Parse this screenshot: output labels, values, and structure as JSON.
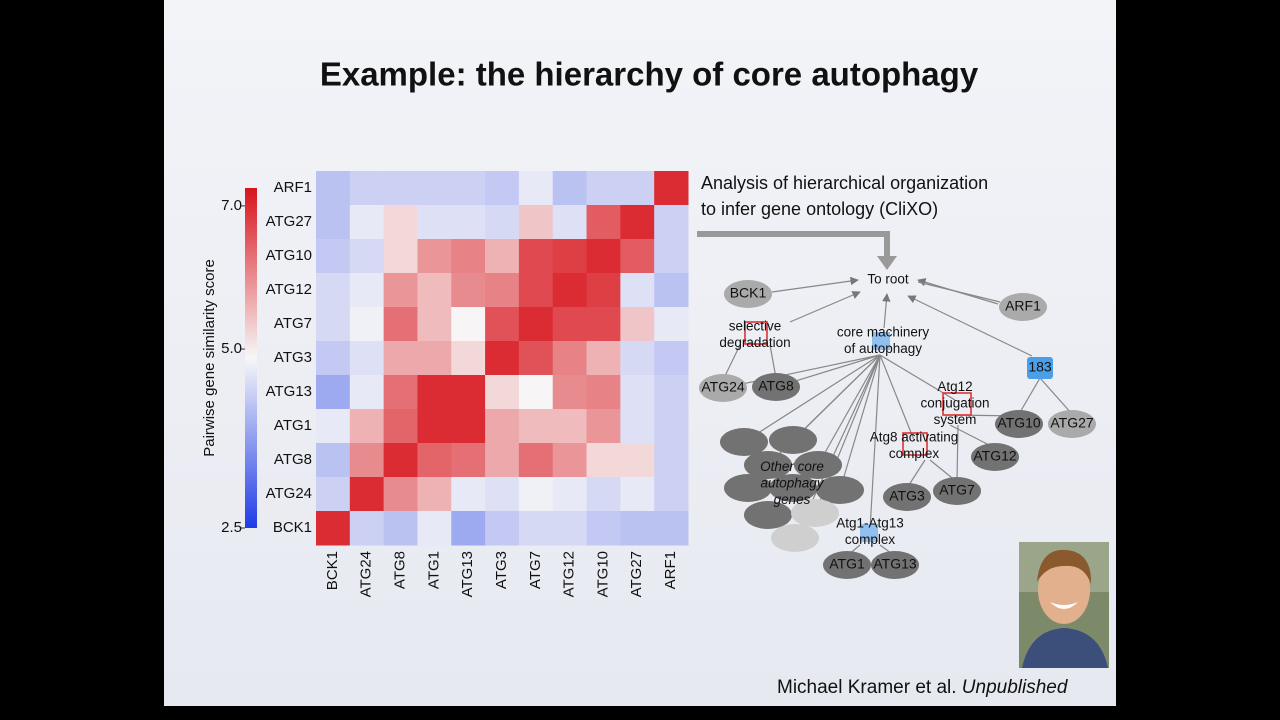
{
  "title": "Example: the hierarchy of core autophagy",
  "chart_data": {
    "type": "heatmap",
    "colorbar_label": "Pairwise gene similarity score",
    "x_categories": [
      "BCK1",
      "ATG24",
      "ATG8",
      "ATG1",
      "ATG13",
      "ATG3",
      "ATG7",
      "ATG12",
      "ATG10",
      "ATG27",
      "ARF1"
    ],
    "y_categories": [
      "ARF1",
      "ATG27",
      "ATG10",
      "ATG12",
      "ATG7",
      "ATG3",
      "ATG13",
      "ATG1",
      "ATG8",
      "ATG24",
      "BCK1"
    ],
    "values": [
      [
        4.2,
        4.4,
        4.4,
        4.4,
        4.4,
        4.3,
        4.7,
        4.2,
        4.4,
        4.4,
        7
      ],
      [
        4.2,
        4.7,
        5.2,
        4.6,
        4.6,
        4.5,
        5.4,
        4.6,
        6.5,
        7,
        4.4
      ],
      [
        4.3,
        4.5,
        5.2,
        5.9,
        6.1,
        5.6,
        6.7,
        6.8,
        7,
        6.5,
        4.4
      ],
      [
        4.5,
        4.7,
        5.9,
        5.5,
        6.0,
        6.1,
        6.7,
        7,
        6.8,
        4.6,
        4.2
      ],
      [
        4.5,
        4.8,
        6.3,
        5.5,
        4.9,
        6.6,
        7,
        6.7,
        6.7,
        5.4,
        4.7
      ],
      [
        4.3,
        4.6,
        5.7,
        5.7,
        5.2,
        7,
        6.6,
        6.1,
        5.6,
        4.5,
        4.3
      ],
      [
        3.9,
        4.7,
        6.3,
        7,
        7,
        5.2,
        4.9,
        6.0,
        6.1,
        4.6,
        4.4
      ],
      [
        4.7,
        5.6,
        6.4,
        7,
        7,
        5.7,
        5.5,
        5.5,
        5.9,
        4.6,
        4.4
      ],
      [
        4.2,
        6.0,
        7,
        6.4,
        6.3,
        5.7,
        6.3,
        5.9,
        5.2,
        5.2,
        4.4
      ],
      [
        4.4,
        7,
        6.0,
        5.6,
        4.7,
        4.6,
        4.8,
        4.7,
        4.5,
        4.7,
        4.4
      ],
      [
        7,
        4.4,
        4.2,
        4.7,
        3.9,
        4.3,
        4.5,
        4.5,
        4.3,
        4.2,
        4.2
      ]
    ],
    "clim": [
      2.5,
      7.25
    ],
    "cticks": [
      {
        "value": 2.5,
        "label": "2.5"
      },
      {
        "value": 5,
        "label": "5.0"
      },
      {
        "value": 7,
        "label": "7.0"
      }
    ],
    "colors": [
      "#1f3be6",
      "#f7f7f7",
      "#d8141c"
    ]
  },
  "diagram": {
    "caption": [
      "Analysis of hierarchical organization",
      "to infer gene ontology (CliXO)"
    ],
    "nodes": [
      [
        "To root"
      ],
      [
        "BCK1"
      ],
      [
        "ARF1"
      ],
      [
        "selective",
        "degradation"
      ],
      [
        "core machinery",
        "of autophagy"
      ],
      [
        "183"
      ],
      [
        "ATG24"
      ],
      [
        "ATG8"
      ],
      [
        "Atg12",
        "conjugation",
        "system"
      ],
      [
        "ATG10"
      ],
      [
        "ATG27"
      ],
      [
        "Atg8 activating",
        "complex"
      ],
      [
        "ATG12"
      ],
      [
        "Other core",
        "autophagy",
        "genes"
      ],
      [
        "ATG3"
      ],
      [
        "ATG7"
      ],
      [
        "Atg1-Atg13",
        "complex"
      ],
      [
        "ATG1"
      ],
      [
        "ATG13"
      ]
    ]
  },
  "citation": {
    "authors": "Michael Kramer et al.",
    "status": "Unpublished"
  }
}
